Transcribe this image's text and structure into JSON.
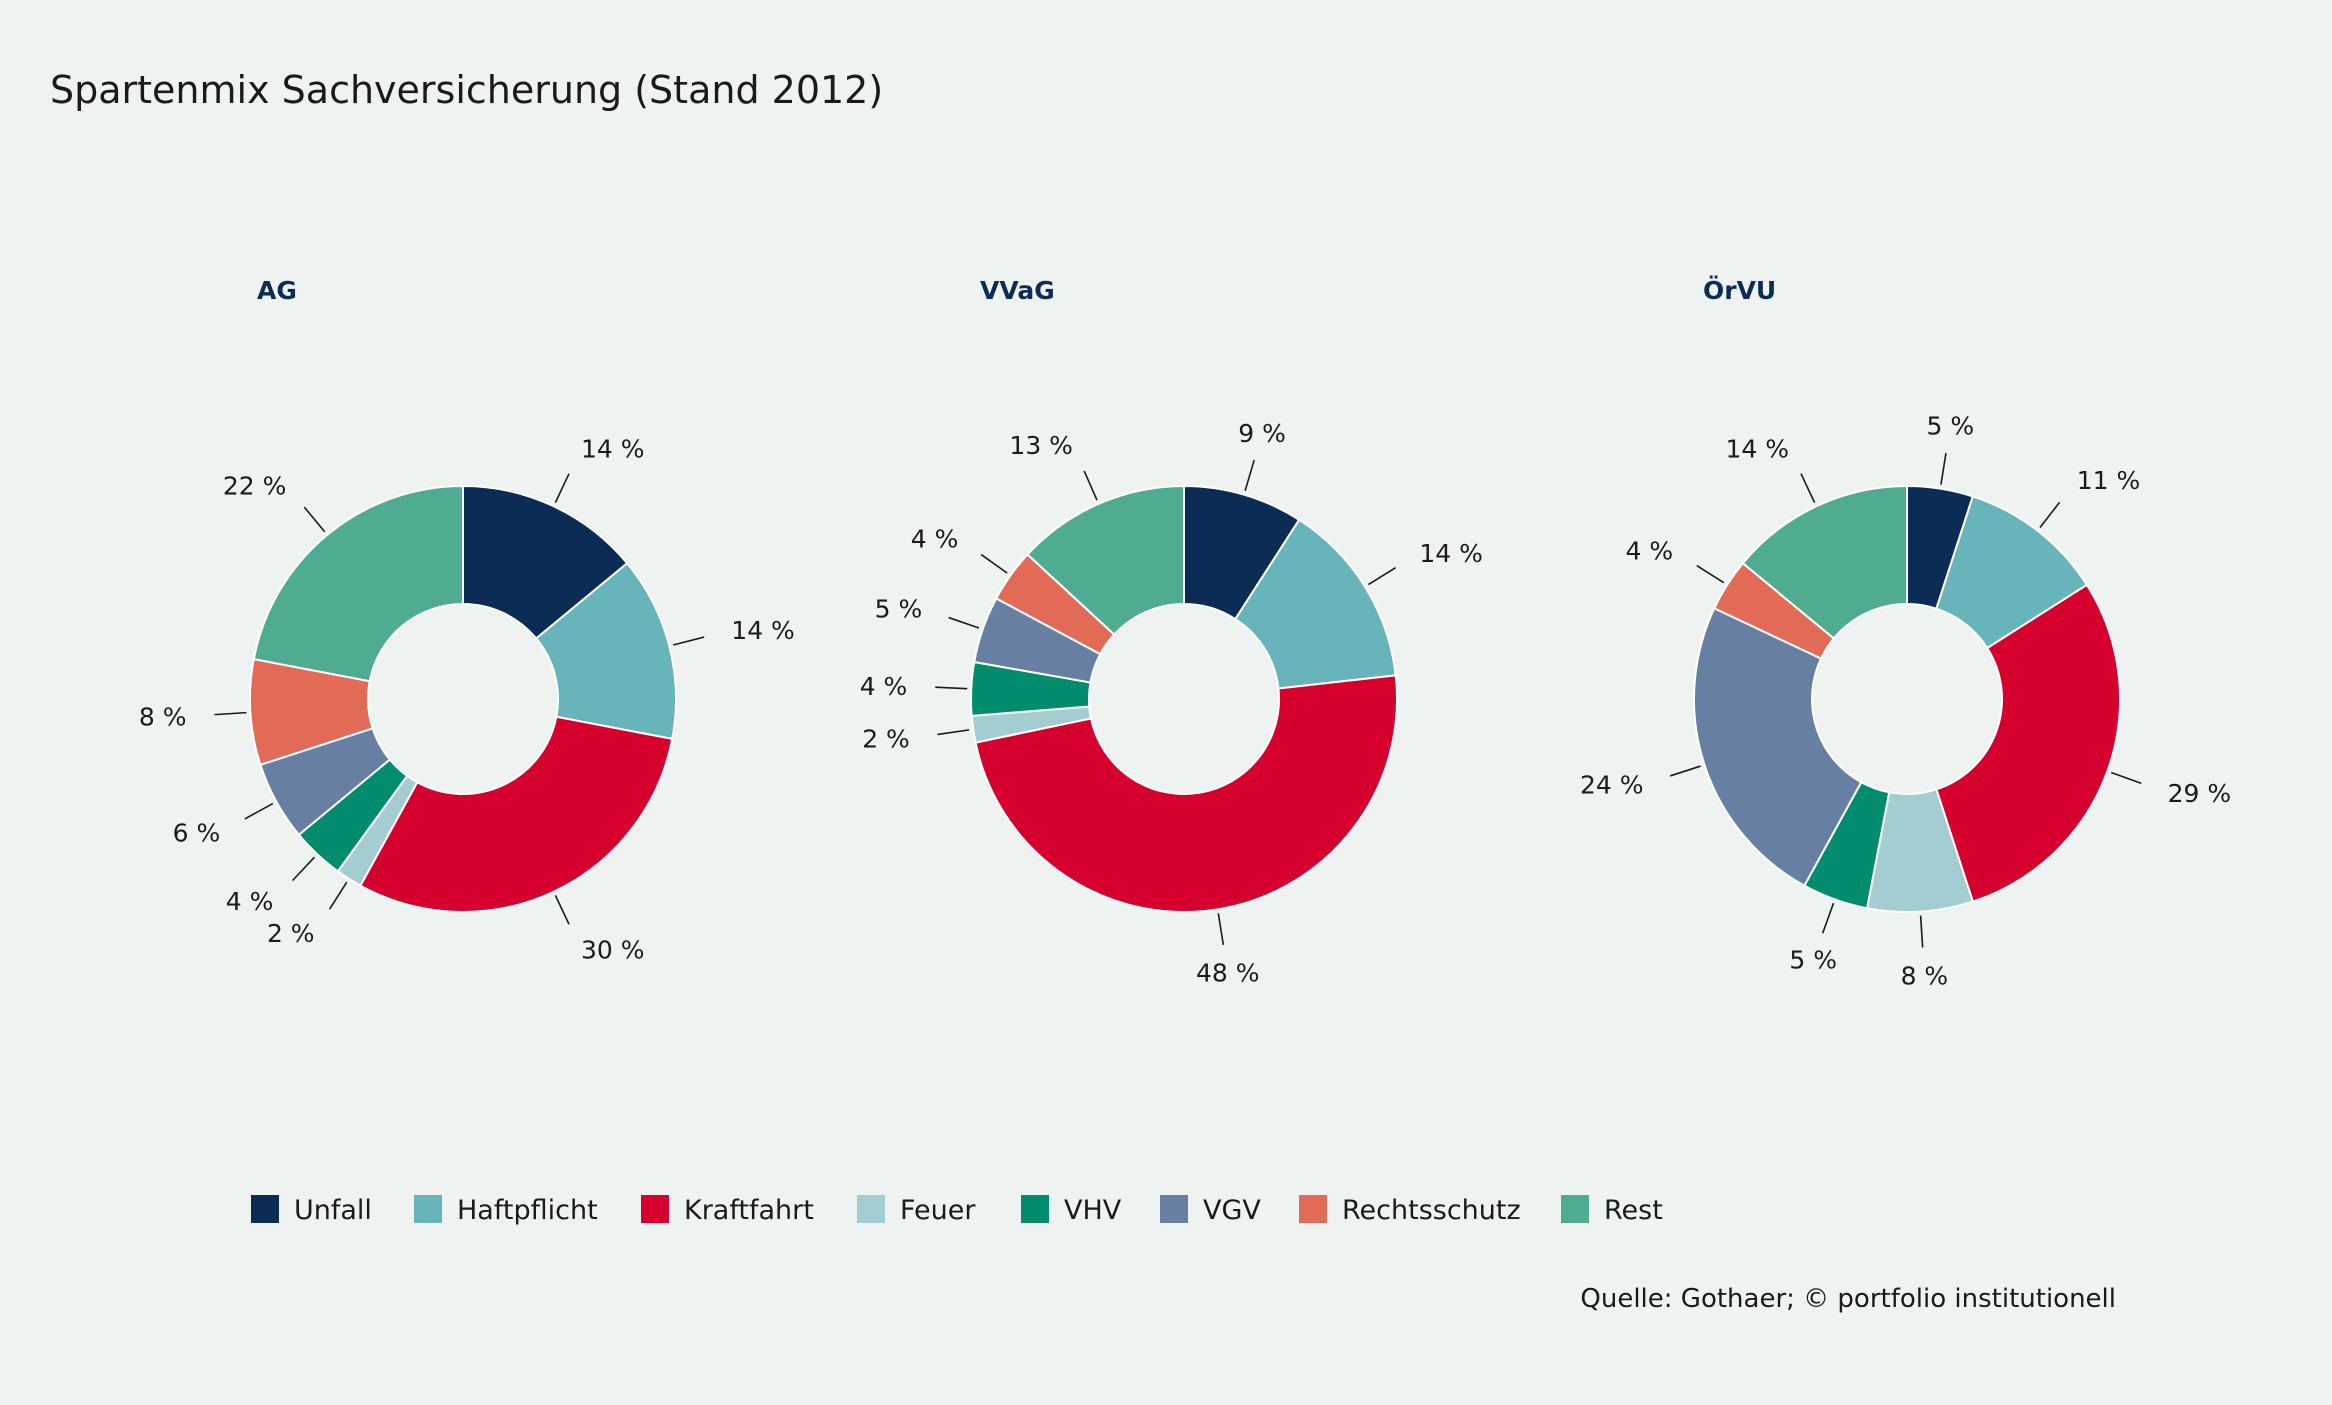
{
  "title": "Spartenmix Sachversicherung (Stand 2012)",
  "source": "Quelle: Gothaer; © portfolio institutionell",
  "legend": [
    {
      "label": "Unfall",
      "color": "#0b2c55"
    },
    {
      "label": "Haftpflicht",
      "color": "#67b4bb"
    },
    {
      "label": "Kraftfahrt",
      "color": "#d5002e"
    },
    {
      "label": "Feuer",
      "color": "#a3cdd0"
    },
    {
      "label": "VHV",
      "color": "#008c6d"
    },
    {
      "label": "VGV",
      "color": "#677fa2"
    },
    {
      "label": "Rechtsschutz",
      "color": "#e26b58"
    },
    {
      "label": "Rest",
      "color": "#4fac91"
    }
  ],
  "chart_data": [
    {
      "type": "pie",
      "title": "AG",
      "categories": [
        "Unfall",
        "Haftpflicht",
        "Kraftfahrt",
        "Feuer",
        "VHV",
        "VGV",
        "Rechtsschutz",
        "Rest"
      ],
      "values": [
        14,
        14,
        30,
        2,
        4,
        6,
        8,
        22
      ],
      "labels": [
        "14 %",
        "14 %",
        "30 %",
        "2 %",
        "4 %",
        "6 %",
        "8 %",
        "22 %"
      ]
    },
    {
      "type": "pie",
      "title": "VVaG",
      "categories": [
        "Unfall",
        "Haftpflicht",
        "Kraftfahrt",
        "Feuer",
        "VHV",
        "VGV",
        "Rechtsschutz",
        "Rest"
      ],
      "values": [
        9,
        14,
        48,
        2,
        4,
        5,
        4,
        13
      ],
      "labels": [
        "9 %",
        "14 %",
        "48 %",
        "2 %",
        "4 %",
        "5 %",
        "4 %",
        "13 %"
      ]
    },
    {
      "type": "pie",
      "title": "ÖrVU",
      "categories": [
        "Unfall",
        "Haftpflicht",
        "Kraftfahrt",
        "Feuer",
        "VHV",
        "VGV",
        "Rechtsschutz",
        "Rest"
      ],
      "values": [
        5,
        11,
        29,
        8,
        5,
        24,
        4,
        14
      ],
      "labels": [
        "5 %",
        "11 %",
        "29 %",
        "8 %",
        "5 %",
        "24 %",
        "4 %",
        "14 %"
      ]
    }
  ]
}
